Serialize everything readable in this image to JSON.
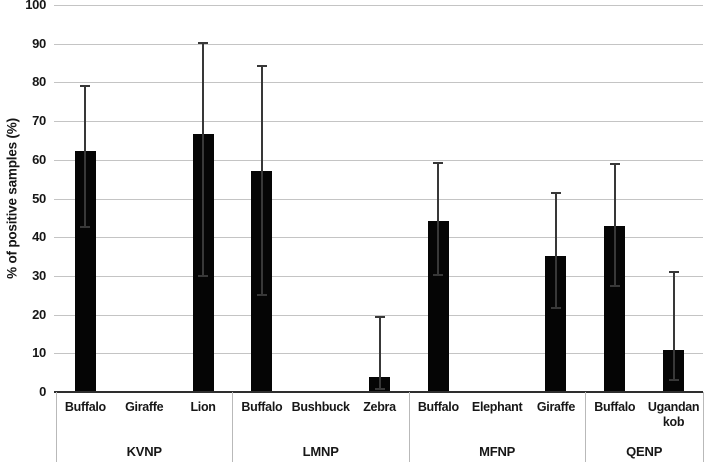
{
  "chart_data": {
    "type": "bar",
    "title": "",
    "xlabel": "",
    "ylabel": "% of positive samples (%)",
    "ylim": [
      0,
      100
    ],
    "yticks": [
      0,
      10,
      20,
      30,
      40,
      50,
      60,
      70,
      80,
      90,
      100
    ],
    "grid": "horizontal",
    "legend": "none",
    "bar_color": "#050505",
    "gridline_color": "#c4c4c4",
    "axis_color": "#2e2e2e",
    "divider_color": "#b9b9b9",
    "error_bar_color": "#383838",
    "groups": [
      {
        "park": "KVNP",
        "species": [
          {
            "label": "Buffalo",
            "value": 62.4,
            "err_low": 42.7,
            "err_high": 79.1
          },
          {
            "label": "Giraffe",
            "value": 0,
            "err_low": null,
            "err_high": null
          },
          {
            "label": "Lion",
            "value": 66.6,
            "err_low": 30.0,
            "err_high": 90.3
          }
        ]
      },
      {
        "park": "LMNP",
        "species": [
          {
            "label": "Buffalo",
            "value": 57.1,
            "err_low": 25.0,
            "err_high": 84.2
          },
          {
            "label": "Bushbuck",
            "value": 0,
            "err_low": null,
            "err_high": null
          },
          {
            "label": "Zebra",
            "value": 3.8,
            "err_low": 0.7,
            "err_high": 19.3
          }
        ]
      },
      {
        "park": "MFNP",
        "species": [
          {
            "label": "Buffalo",
            "value": 44.3,
            "err_low": 30.3,
            "err_high": 59.3
          },
          {
            "label": "Elephant",
            "value": 0,
            "err_low": null,
            "err_high": null
          },
          {
            "label": "Giraffe",
            "value": 35.1,
            "err_low": 21.8,
            "err_high": 51.4
          }
        ]
      },
      {
        "park": "QENP",
        "species": [
          {
            "label": "Buffalo",
            "value": 42.8,
            "err_low": 27.5,
            "err_high": 59.0
          },
          {
            "label": "Ugandan kob",
            "value": 10.9,
            "err_low": 3.0,
            "err_high": 31.0
          }
        ]
      }
    ]
  }
}
